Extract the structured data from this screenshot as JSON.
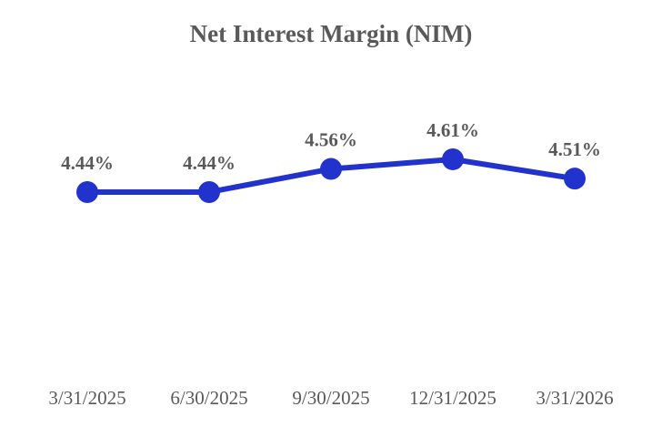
{
  "chart_data": {
    "type": "line",
    "title": "Net Interest Margin (NIM)",
    "categories": [
      "3/31/2025",
      "6/30/2025",
      "9/30/2025",
      "12/31/2025",
      "3/31/2026"
    ],
    "values": [
      4.44,
      4.44,
      4.56,
      4.61,
      4.51
    ],
    "data_labels": [
      "4.44%",
      "4.44%",
      "4.56%",
      "4.61%",
      "4.51%"
    ],
    "ylabel": "",
    "xlabel": "",
    "ylim": [
      4.3,
      4.75
    ],
    "gridlines": false,
    "axis_lines": false,
    "legend_position": "none",
    "colors": {
      "line": "#2133cc",
      "marker": "#2133cc",
      "title_text": "#595959",
      "label_text": "#595959",
      "axis_text": "#595959",
      "background": "#ffffff"
    }
  }
}
